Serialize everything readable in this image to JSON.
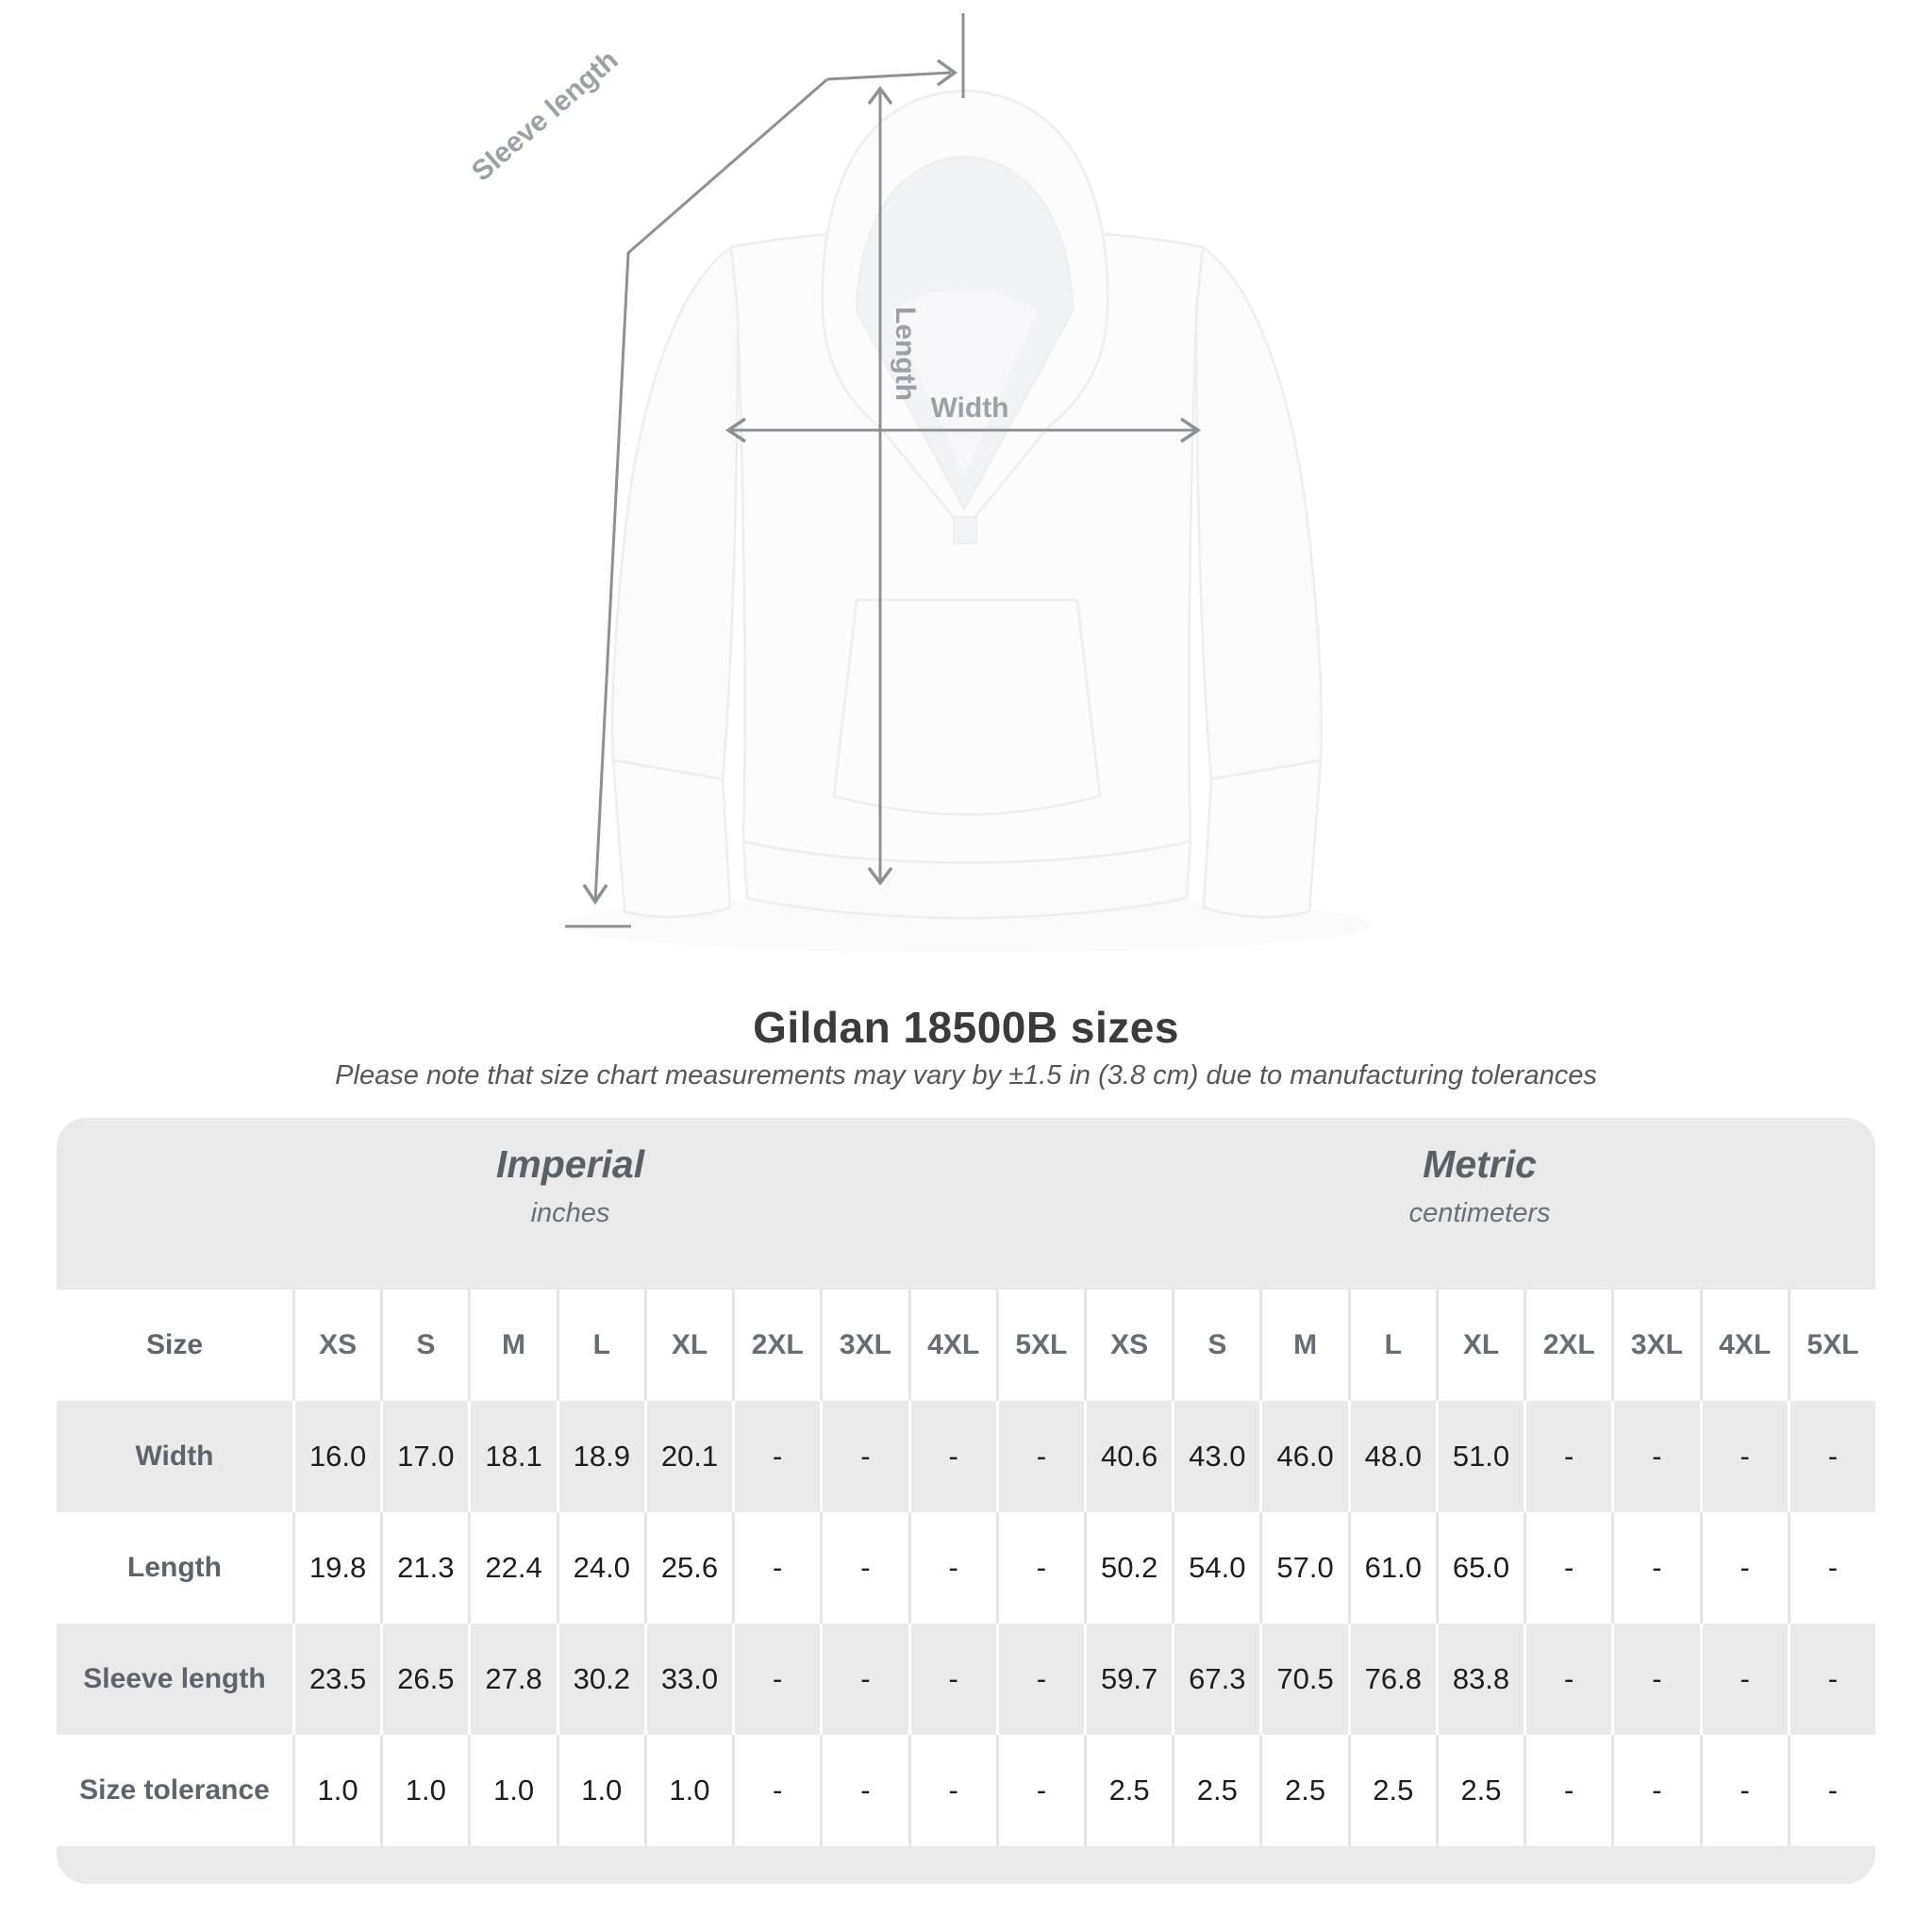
{
  "diagram": {
    "labels": {
      "sleeve_length": "Sleeve length",
      "length": "Length",
      "width": "Width"
    },
    "line_color": "#8d9196",
    "label_color": "#9ba1a7"
  },
  "title": "Gildan 18500B sizes",
  "subtitle": "Please note that size chart measurements may vary by ±1.5 in (3.8 cm) due to manufacturing tolerances",
  "table": {
    "groups": [
      {
        "label": "Imperial",
        "unit": "inches"
      },
      {
        "label": "Metric",
        "unit": "centimeters"
      }
    ],
    "size_header": "Size",
    "sizes": [
      "XS",
      "S",
      "M",
      "L",
      "XL",
      "2XL",
      "3XL",
      "4XL",
      "5XL"
    ],
    "rows": [
      {
        "label": "Width",
        "imperial": [
          "16.0",
          "17.0",
          "18.1",
          "18.9",
          "20.1",
          "-",
          "-",
          "-",
          "-"
        ],
        "metric": [
          "40.6",
          "43.0",
          "46.0",
          "48.0",
          "51.0",
          "-",
          "-",
          "-",
          "-"
        ]
      },
      {
        "label": "Length",
        "imperial": [
          "19.8",
          "21.3",
          "22.4",
          "24.0",
          "25.6",
          "-",
          "-",
          "-",
          "-"
        ],
        "metric": [
          "50.2",
          "54.0",
          "57.0",
          "61.0",
          "65.0",
          "-",
          "-",
          "-",
          "-"
        ]
      },
      {
        "label": "Sleeve length",
        "imperial": [
          "23.5",
          "26.5",
          "27.8",
          "30.2",
          "33.0",
          "-",
          "-",
          "-",
          "-"
        ],
        "metric": [
          "59.7",
          "67.3",
          "70.5",
          "76.8",
          "83.8",
          "-",
          "-",
          "-",
          "-"
        ]
      },
      {
        "label": "Size tolerance",
        "imperial": [
          "1.0",
          "1.0",
          "1.0",
          "1.0",
          "1.0",
          "-",
          "-",
          "-",
          "-"
        ],
        "metric": [
          "2.5",
          "2.5",
          "2.5",
          "2.5",
          "2.5",
          "-",
          "-",
          "-",
          "-"
        ]
      }
    ]
  },
  "chart_data": {
    "type": "table",
    "title": "Gildan 18500B sizes",
    "note": "Please note that size chart measurements may vary by ±1.5 in (3.8 cm) due to manufacturing tolerances",
    "column_groups": [
      "Imperial (inches)",
      "Metric (centimeters)"
    ],
    "columns": [
      "XS",
      "S",
      "M",
      "L",
      "XL",
      "2XL",
      "3XL",
      "4XL",
      "5XL"
    ],
    "rows": [
      {
        "label": "Width",
        "imperial": [
          16.0,
          17.0,
          18.1,
          18.9,
          20.1,
          null,
          null,
          null,
          null
        ],
        "metric": [
          40.6,
          43.0,
          46.0,
          48.0,
          51.0,
          null,
          null,
          null,
          null
        ]
      },
      {
        "label": "Length",
        "imperial": [
          19.8,
          21.3,
          22.4,
          24.0,
          25.6,
          null,
          null,
          null,
          null
        ],
        "metric": [
          50.2,
          54.0,
          57.0,
          61.0,
          65.0,
          null,
          null,
          null,
          null
        ]
      },
      {
        "label": "Sleeve length",
        "imperial": [
          23.5,
          26.5,
          27.8,
          30.2,
          33.0,
          null,
          null,
          null,
          null
        ],
        "metric": [
          59.7,
          67.3,
          70.5,
          76.8,
          83.8,
          null,
          null,
          null,
          null
        ]
      },
      {
        "label": "Size tolerance",
        "imperial": [
          1.0,
          1.0,
          1.0,
          1.0,
          1.0,
          null,
          null,
          null,
          null
        ],
        "metric": [
          2.5,
          2.5,
          2.5,
          2.5,
          2.5,
          null,
          null,
          null,
          null
        ]
      }
    ]
  }
}
